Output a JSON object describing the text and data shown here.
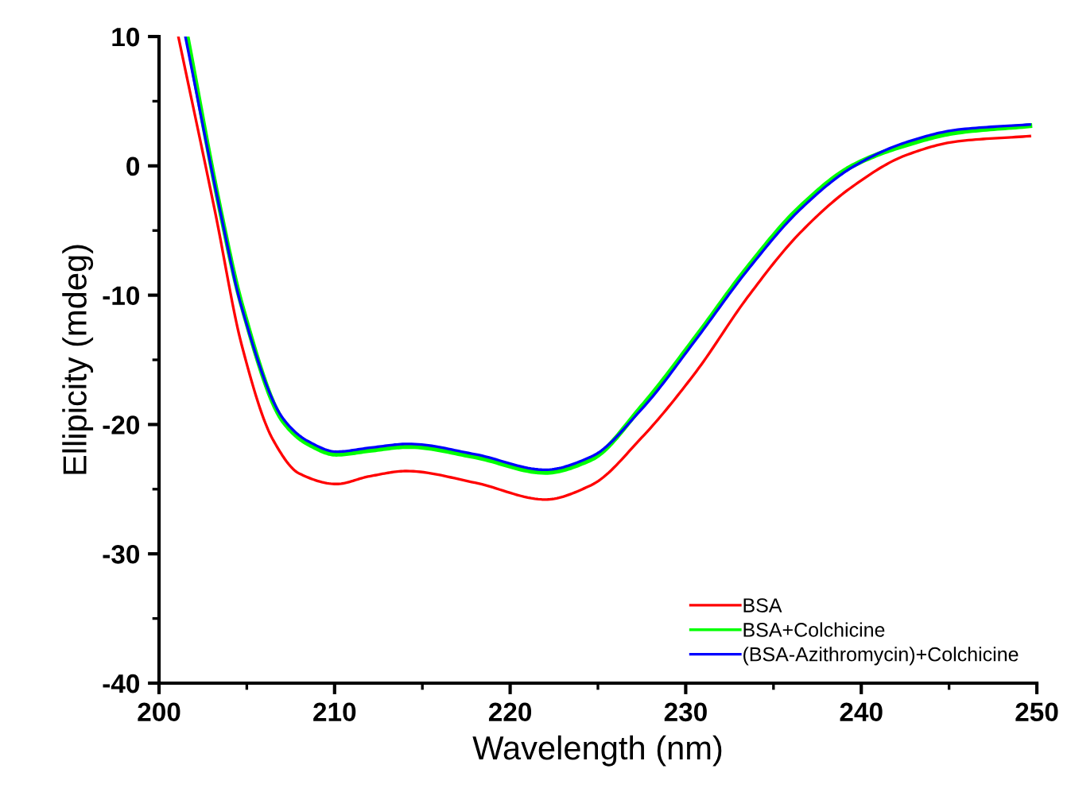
{
  "chart_data": {
    "type": "line",
    "xlabel": "Wavelength (nm)",
    "ylabel": "Ellipicity (mdeg)",
    "xlim": [
      200,
      250
    ],
    "ylim": [
      -40,
      10
    ],
    "xticks": [
      200,
      210,
      220,
      230,
      240,
      250
    ],
    "yticks": [
      -40,
      -30,
      -20,
      -10,
      0,
      10
    ],
    "grid": false,
    "legend": "bottom right",
    "marker": "none",
    "line_style": "solid",
    "series": [
      {
        "name": "BSA",
        "color": "#ff0000",
        "x": [
          201.1,
          203.2,
          204.7,
          206.5,
          208.0,
          210.1,
          212.0,
          214.1,
          218.0,
          222.0,
          224.6,
          227.5,
          230.6,
          233.5,
          236.5,
          239.5,
          242.5,
          245.5,
          249.6
        ],
        "values": [
          10,
          -3.6,
          -13.8,
          -21.2,
          -23.8,
          -24.6,
          -24.0,
          -23.6,
          -24.5,
          -25.8,
          -24.7,
          -21.0,
          -15.9,
          -10.2,
          -5.2,
          -1.6,
          0.8,
          1.9,
          2.3
        ]
      },
      {
        "name": "BSA+Colchicine",
        "color": "#00ff00",
        "x": [
          201.6,
          203.5,
          204.7,
          207.1,
          208.5,
          210.1,
          212.0,
          214.2,
          218.0,
          222.0,
          224.6,
          227.5,
          230.6,
          233.5,
          236.5,
          239.5,
          242.5,
          245.5,
          249.6
        ],
        "values": [
          10,
          -3.5,
          -10.7,
          -19.8,
          -21.5,
          -22.3,
          -22.0,
          -21.7,
          -22.5,
          -23.7,
          -22.7,
          -18.6,
          -13.2,
          -7.9,
          -3.2,
          0.0,
          1.6,
          2.6,
          3.1
        ]
      },
      {
        "name": "(BSA-Azithromycin)+Colchicine",
        "color": "#0000ff",
        "x": [
          201.5,
          203.5,
          204.7,
          207.1,
          208.5,
          210.1,
          212.0,
          214.2,
          218.0,
          222.0,
          224.6,
          227.5,
          230.6,
          233.5,
          236.5,
          239.5,
          242.5,
          245.5,
          249.6
        ],
        "values": [
          10,
          -3.6,
          -10.9,
          -19.6,
          -21.3,
          -22.1,
          -21.8,
          -21.5,
          -22.3,
          -23.5,
          -22.5,
          -18.8,
          -13.4,
          -8.1,
          -3.4,
          -0.1,
          1.8,
          2.8,
          3.2
        ]
      }
    ]
  }
}
